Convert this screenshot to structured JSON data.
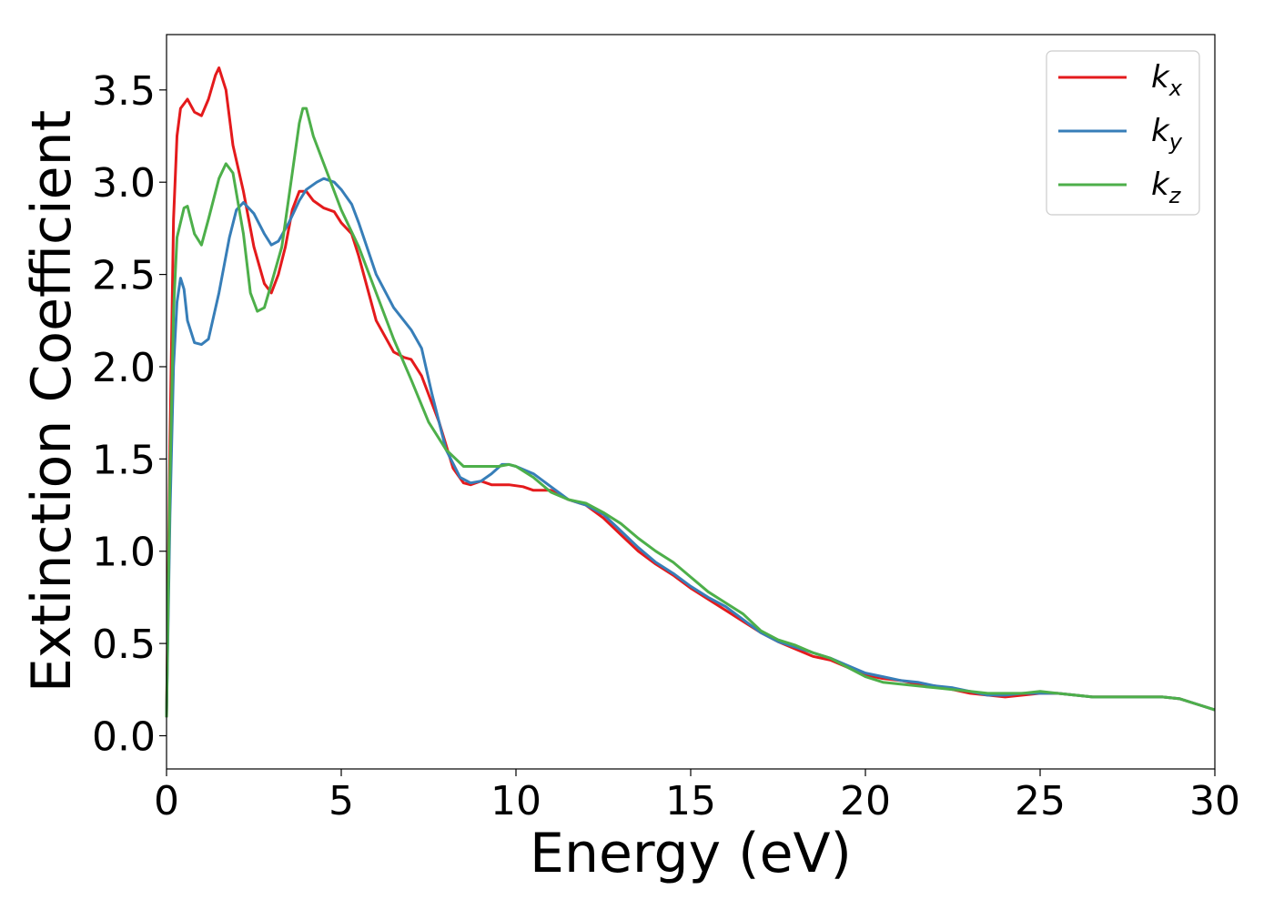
{
  "chart_data": {
    "type": "line",
    "title": "",
    "xlabel": "Energy (eV)",
    "ylabel": "Extinction Coefficient",
    "xlim": [
      0,
      30
    ],
    "ylim": [
      -0.18,
      3.8
    ],
    "xticks": [
      0,
      5,
      10,
      15,
      20,
      25,
      30
    ],
    "xtick_labels": [
      "0",
      "5",
      "10",
      "15",
      "20",
      "25",
      "30"
    ],
    "yticks": [
      0.0,
      0.5,
      1.0,
      1.5,
      2.0,
      2.5,
      3.0,
      3.5
    ],
    "ytick_labels": [
      "0.0",
      "0.5",
      "1.0",
      "1.5",
      "2.0",
      "2.5",
      "3.0",
      "3.5"
    ],
    "grid": false,
    "legend_position": "top-right",
    "series": [
      {
        "name": "k_x",
        "label_main": "k",
        "label_sub": "x",
        "color": "#e41a1c",
        "points": [
          [
            0,
            0.1
          ],
          [
            0.1,
            1.6
          ],
          [
            0.2,
            2.8
          ],
          [
            0.3,
            3.25
          ],
          [
            0.4,
            3.4
          ],
          [
            0.6,
            3.45
          ],
          [
            0.8,
            3.38
          ],
          [
            1.0,
            3.36
          ],
          [
            1.2,
            3.45
          ],
          [
            1.4,
            3.58
          ],
          [
            1.5,
            3.62
          ],
          [
            1.7,
            3.5
          ],
          [
            1.9,
            3.2
          ],
          [
            2.2,
            2.95
          ],
          [
            2.5,
            2.65
          ],
          [
            2.8,
            2.45
          ],
          [
            3.0,
            2.4
          ],
          [
            3.2,
            2.5
          ],
          [
            3.4,
            2.65
          ],
          [
            3.6,
            2.85
          ],
          [
            3.8,
            2.95
          ],
          [
            4.0,
            2.95
          ],
          [
            4.2,
            2.9
          ],
          [
            4.5,
            2.86
          ],
          [
            4.8,
            2.84
          ],
          [
            5.0,
            2.78
          ],
          [
            5.3,
            2.72
          ],
          [
            5.5,
            2.6
          ],
          [
            6.0,
            2.25
          ],
          [
            6.5,
            2.08
          ],
          [
            6.8,
            2.05
          ],
          [
            7.0,
            2.04
          ],
          [
            7.3,
            1.95
          ],
          [
            7.8,
            1.7
          ],
          [
            8.2,
            1.45
          ],
          [
            8.5,
            1.37
          ],
          [
            8.7,
            1.36
          ],
          [
            9.0,
            1.38
          ],
          [
            9.3,
            1.36
          ],
          [
            9.8,
            1.36
          ],
          [
            10.2,
            1.35
          ],
          [
            10.5,
            1.33
          ],
          [
            11.0,
            1.33
          ],
          [
            11.5,
            1.28
          ],
          [
            12.0,
            1.25
          ],
          [
            12.5,
            1.18
          ],
          [
            13.0,
            1.09
          ],
          [
            13.5,
            1.0
          ],
          [
            14.0,
            0.93
          ],
          [
            14.5,
            0.87
          ],
          [
            15.0,
            0.8
          ],
          [
            15.5,
            0.74
          ],
          [
            16.0,
            0.68
          ],
          [
            16.5,
            0.62
          ],
          [
            17.0,
            0.56
          ],
          [
            17.5,
            0.51
          ],
          [
            18.0,
            0.47
          ],
          [
            18.5,
            0.43
          ],
          [
            19.0,
            0.41
          ],
          [
            19.5,
            0.37
          ],
          [
            20.0,
            0.33
          ],
          [
            20.5,
            0.31
          ],
          [
            21.0,
            0.3
          ],
          [
            21.5,
            0.28
          ],
          [
            22.0,
            0.27
          ],
          [
            22.5,
            0.25
          ],
          [
            23.0,
            0.23
          ],
          [
            23.5,
            0.22
          ],
          [
            24.0,
            0.21
          ],
          [
            24.5,
            0.22
          ],
          [
            25.0,
            0.23
          ],
          [
            25.5,
            0.23
          ],
          [
            26.0,
            0.22
          ],
          [
            26.5,
            0.21
          ],
          [
            27.0,
            0.21
          ],
          [
            27.5,
            0.21
          ],
          [
            28.0,
            0.21
          ],
          [
            28.5,
            0.21
          ],
          [
            29.0,
            0.2
          ],
          [
            29.5,
            0.17
          ],
          [
            30.0,
            0.14
          ]
        ]
      },
      {
        "name": "k_y",
        "label_main": "k",
        "label_sub": "y",
        "color": "#377eb8",
        "points": [
          [
            0,
            0.1
          ],
          [
            0.1,
            1.2
          ],
          [
            0.2,
            2.0
          ],
          [
            0.3,
            2.35
          ],
          [
            0.4,
            2.48
          ],
          [
            0.5,
            2.42
          ],
          [
            0.6,
            2.25
          ],
          [
            0.8,
            2.13
          ],
          [
            1.0,
            2.12
          ],
          [
            1.2,
            2.15
          ],
          [
            1.5,
            2.4
          ],
          [
            1.8,
            2.7
          ],
          [
            2.0,
            2.85
          ],
          [
            2.2,
            2.89
          ],
          [
            2.5,
            2.83
          ],
          [
            2.8,
            2.72
          ],
          [
            3.0,
            2.66
          ],
          [
            3.2,
            2.68
          ],
          [
            3.5,
            2.78
          ],
          [
            3.8,
            2.9
          ],
          [
            4.0,
            2.96
          ],
          [
            4.3,
            3.0
          ],
          [
            4.5,
            3.02
          ],
          [
            4.8,
            3.0
          ],
          [
            5.0,
            2.96
          ],
          [
            5.3,
            2.88
          ],
          [
            5.5,
            2.78
          ],
          [
            6.0,
            2.5
          ],
          [
            6.5,
            2.32
          ],
          [
            7.0,
            2.2
          ],
          [
            7.3,
            2.1
          ],
          [
            7.6,
            1.85
          ],
          [
            8.0,
            1.55
          ],
          [
            8.4,
            1.4
          ],
          [
            8.7,
            1.37
          ],
          [
            9.0,
            1.38
          ],
          [
            9.3,
            1.42
          ],
          [
            9.6,
            1.47
          ],
          [
            9.8,
            1.47
          ],
          [
            10.0,
            1.46
          ],
          [
            10.5,
            1.42
          ],
          [
            11.0,
            1.35
          ],
          [
            11.5,
            1.28
          ],
          [
            12.0,
            1.25
          ],
          [
            12.5,
            1.2
          ],
          [
            13.0,
            1.11
          ],
          [
            13.5,
            1.02
          ],
          [
            14.0,
            0.94
          ],
          [
            14.5,
            0.88
          ],
          [
            15.0,
            0.81
          ],
          [
            15.5,
            0.75
          ],
          [
            16.0,
            0.7
          ],
          [
            16.5,
            0.63
          ],
          [
            17.0,
            0.56
          ],
          [
            17.5,
            0.51
          ],
          [
            18.0,
            0.48
          ],
          [
            18.5,
            0.45
          ],
          [
            19.0,
            0.42
          ],
          [
            19.5,
            0.38
          ],
          [
            20.0,
            0.34
          ],
          [
            20.5,
            0.32
          ],
          [
            21.0,
            0.3
          ],
          [
            21.5,
            0.29
          ],
          [
            22.0,
            0.27
          ],
          [
            22.5,
            0.26
          ],
          [
            23.0,
            0.24
          ],
          [
            23.5,
            0.22
          ],
          [
            24.0,
            0.22
          ],
          [
            24.5,
            0.23
          ],
          [
            25.0,
            0.23
          ],
          [
            25.5,
            0.23
          ],
          [
            26.0,
            0.22
          ],
          [
            26.5,
            0.21
          ],
          [
            27.0,
            0.21
          ],
          [
            27.5,
            0.21
          ],
          [
            28.0,
            0.21
          ],
          [
            28.5,
            0.21
          ],
          [
            29.0,
            0.2
          ],
          [
            29.5,
            0.17
          ],
          [
            30.0,
            0.14
          ]
        ]
      },
      {
        "name": "k_z",
        "label_main": "k",
        "label_sub": "z",
        "color": "#4daf4a",
        "points": [
          [
            0,
            0.1
          ],
          [
            0.1,
            1.4
          ],
          [
            0.2,
            2.3
          ],
          [
            0.3,
            2.7
          ],
          [
            0.5,
            2.86
          ],
          [
            0.6,
            2.87
          ],
          [
            0.8,
            2.72
          ],
          [
            1.0,
            2.66
          ],
          [
            1.2,
            2.8
          ],
          [
            1.5,
            3.02
          ],
          [
            1.7,
            3.1
          ],
          [
            1.9,
            3.05
          ],
          [
            2.2,
            2.72
          ],
          [
            2.4,
            2.4
          ],
          [
            2.6,
            2.3
          ],
          [
            2.8,
            2.32
          ],
          [
            3.0,
            2.45
          ],
          [
            3.3,
            2.65
          ],
          [
            3.6,
            3.05
          ],
          [
            3.8,
            3.32
          ],
          [
            3.9,
            3.4
          ],
          [
            4.0,
            3.4
          ],
          [
            4.2,
            3.25
          ],
          [
            4.5,
            3.1
          ],
          [
            5.0,
            2.85
          ],
          [
            5.5,
            2.65
          ],
          [
            6.0,
            2.4
          ],
          [
            6.5,
            2.15
          ],
          [
            7.0,
            1.93
          ],
          [
            7.5,
            1.7
          ],
          [
            8.0,
            1.55
          ],
          [
            8.5,
            1.46
          ],
          [
            9.0,
            1.46
          ],
          [
            9.5,
            1.46
          ],
          [
            9.8,
            1.47
          ],
          [
            10.0,
            1.46
          ],
          [
            10.5,
            1.4
          ],
          [
            11.0,
            1.32
          ],
          [
            11.5,
            1.28
          ],
          [
            12.0,
            1.26
          ],
          [
            12.5,
            1.21
          ],
          [
            13.0,
            1.15
          ],
          [
            13.5,
            1.07
          ],
          [
            14.0,
            1.0
          ],
          [
            14.5,
            0.94
          ],
          [
            15.0,
            0.86
          ],
          [
            15.5,
            0.78
          ],
          [
            16.0,
            0.72
          ],
          [
            16.5,
            0.66
          ],
          [
            17.0,
            0.57
          ],
          [
            17.5,
            0.52
          ],
          [
            18.0,
            0.49
          ],
          [
            18.5,
            0.45
          ],
          [
            19.0,
            0.42
          ],
          [
            19.5,
            0.37
          ],
          [
            20.0,
            0.32
          ],
          [
            20.5,
            0.29
          ],
          [
            21.0,
            0.28
          ],
          [
            21.5,
            0.27
          ],
          [
            22.0,
            0.26
          ],
          [
            22.5,
            0.25
          ],
          [
            23.0,
            0.24
          ],
          [
            23.5,
            0.23
          ],
          [
            24.0,
            0.23
          ],
          [
            24.5,
            0.23
          ],
          [
            25.0,
            0.24
          ],
          [
            25.5,
            0.23
          ],
          [
            26.0,
            0.22
          ],
          [
            26.5,
            0.21
          ],
          [
            27.0,
            0.21
          ],
          [
            27.5,
            0.21
          ],
          [
            28.0,
            0.21
          ],
          [
            28.5,
            0.21
          ],
          [
            29.0,
            0.2
          ],
          [
            29.5,
            0.17
          ],
          [
            30.0,
            0.14
          ]
        ]
      }
    ]
  }
}
